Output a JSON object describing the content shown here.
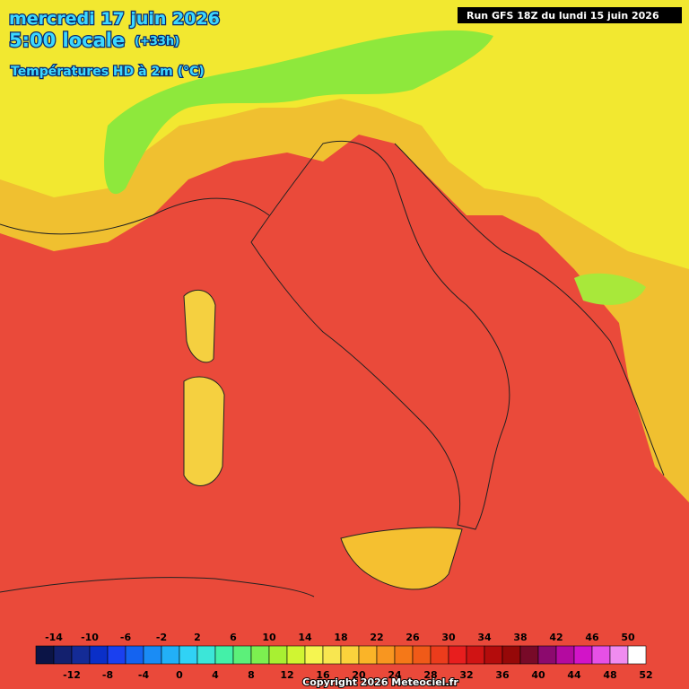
{
  "header": {
    "date": "mercredi 17 juin 2026",
    "time": "5:00 locale",
    "offset": "(+33h)",
    "field": "Températures HD à 2m (°C)",
    "run": "Run GFS 18Z du lundi 15 juin 2026"
  },
  "legend": {
    "colors": [
      "#0b1446",
      "#13206e",
      "#142b96",
      "#0a2fc8",
      "#1a40f0",
      "#1463f0",
      "#1a8cf5",
      "#22b0f7",
      "#30d2f5",
      "#3ce6d8",
      "#44f0a8",
      "#5cf07a",
      "#7cf050",
      "#a8f032",
      "#d0f532",
      "#f5f550",
      "#f8e650",
      "#fad23c",
      "#fab428",
      "#f89620",
      "#f57818",
      "#f05a18",
      "#ec3c1c",
      "#e81e1e",
      "#d01414",
      "#b40c0c",
      "#960808",
      "#780a28",
      "#8c0a6e",
      "#b40aa0",
      "#d214c8",
      "#e650e6",
      "#f08cf0",
      "#ffffff"
    ],
    "top_labels": [
      -14,
      -10,
      -6,
      -2,
      2,
      6,
      10,
      14,
      18,
      22,
      26,
      30,
      34,
      38,
      42,
      46,
      50
    ],
    "bottom_labels": [
      -12,
      -8,
      -4,
      0,
      4,
      8,
      12,
      16,
      20,
      24,
      28,
      32,
      36,
      40,
      44,
      48,
      52
    ]
  },
  "footer": {
    "copyright": "Copyright 2026 Meteociel.fr"
  }
}
